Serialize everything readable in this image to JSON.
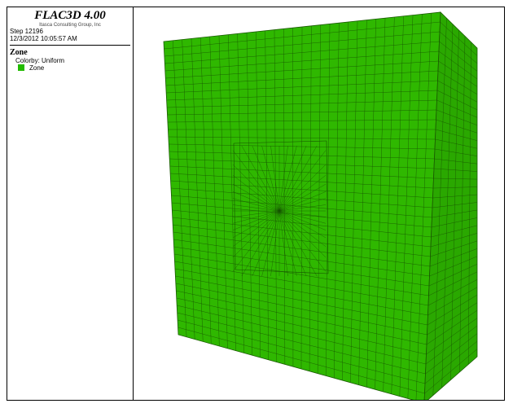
{
  "header": {
    "title": "FLAC3D 4.00",
    "company": "Itasca Consulting Group, Inc",
    "step": "Step 12196",
    "timestamp": "12/3/2012 10:05:57 AM"
  },
  "legend": {
    "heading": "Zone",
    "colorby": "Colorby: Uniform",
    "item": "Zone"
  }
}
